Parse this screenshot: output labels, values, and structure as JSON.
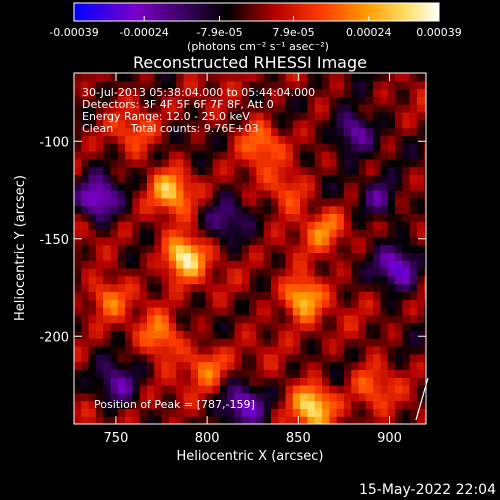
{
  "colorbar": {
    "ticks": [
      "-0.00039",
      "-0.00024",
      "-7.9e-05",
      "7.9e-05",
      "0.00024",
      "0.00039"
    ],
    "tick_values": [
      -0.00039,
      -0.00024,
      -7.9e-05,
      7.9e-05,
      0.00024,
      0.00039
    ],
    "range": [
      -0.00039,
      0.00039
    ],
    "unit_label": "(photons cm⁻² s⁻¹ asec⁻²)",
    "colors": [
      "#0000ff",
      "#7a00c8",
      "#000000",
      "#b40000",
      "#ff3c00",
      "#ff9a00",
      "#ffe066",
      "#ffffff"
    ]
  },
  "info": {
    "line1": "30-Jul-2013 05:38:04.000 to 05:44:04.000",
    "line2": "Detectors: 3F 4F 5F 6F 7F 8F, Att 0",
    "line3": "Energy Range: 12.0 - 25.0 keV",
    "line4": "Clean     Total counts: 9.76E+03",
    "peak": "Position of Peak = [787,-159]"
  },
  "timestamp": "15-May-2022 22:04",
  "chart_data": {
    "type": "heatmap",
    "title": "Reconstructed RHESSI Image",
    "xlabel": "Heliocentric X (arcsec)",
    "ylabel": "Heliocentric Y (arcsec)",
    "xlim": [
      727,
      920
    ],
    "ylim": [
      -245,
      -65
    ],
    "xticks": [
      750,
      800,
      850,
      900
    ],
    "yticks": [
      -100,
      -150,
      -200
    ],
    "peak_position": [
      787,
      -159
    ],
    "hotspots": [
      {
        "x": 787,
        "y": -159,
        "value": 0.00039
      },
      {
        "x": 852,
        "y": -180,
        "value": 0.00033
      },
      {
        "x": 858,
        "y": -235,
        "value": 0.00034
      },
      {
        "x": 780,
        "y": -125,
        "value": 0.00026
      },
      {
        "x": 830,
        "y": -100,
        "value": 0.0002
      },
      {
        "x": 775,
        "y": -200,
        "value": 0.00022
      },
      {
        "x": 800,
        "y": -215,
        "value": 0.00018
      },
      {
        "x": 745,
        "y": -180,
        "value": 0.00018
      },
      {
        "x": 865,
        "y": -145,
        "value": 0.00018
      },
      {
        "x": 890,
        "y": -225,
        "value": 0.00015
      },
      {
        "x": 760,
        "y": -95,
        "value": 0.00012
      },
      {
        "x": 845,
        "y": -125,
        "value": 0.00016
      }
    ],
    "coldspots": [
      {
        "x": 740,
        "y": -130,
        "value": -0.0003
      },
      {
        "x": 880,
        "y": -95,
        "value": -0.00028
      },
      {
        "x": 905,
        "y": -165,
        "value": -0.0003
      },
      {
        "x": 820,
        "y": -235,
        "value": -0.00024
      },
      {
        "x": 750,
        "y": -225,
        "value": -0.0002
      },
      {
        "x": 810,
        "y": -140,
        "value": -0.00016
      },
      {
        "x": 895,
        "y": -130,
        "value": -0.00022
      }
    ]
  }
}
